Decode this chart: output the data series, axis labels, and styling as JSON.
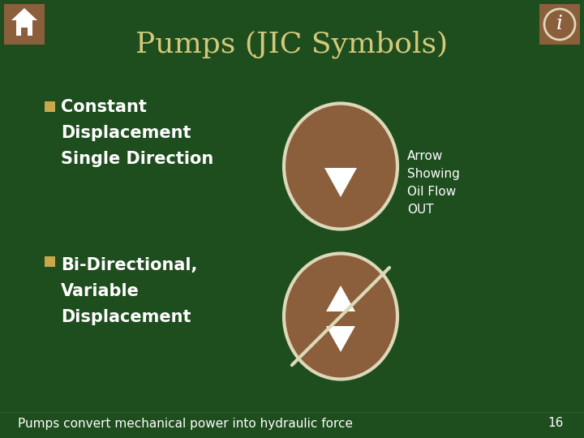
{
  "bg_color": "#1e4d1e",
  "title": "Pumps (JIC Symbols)",
  "title_color": "#d4c87a",
  "title_fontsize": 26,
  "bullet_color": "#c8a84b",
  "text_color": "#ffffff",
  "circle_fill": "#8b5e3c",
  "circle_edge": "#ddd8b8",
  "bullet1_lines": [
    "Constant",
    "Displacement",
    "Single Direction"
  ],
  "bullet2_lines": [
    "Bi-Directional,",
    "Variable",
    "Displacement"
  ],
  "annotation_lines": [
    "Arrow",
    "Showing",
    "Oil Flow",
    "OUT"
  ],
  "footer_text": "Pumps convert mechanical power into hydraulic force",
  "footer_number": "16",
  "footer_color": "#ffffff",
  "icon_fill": "#8b5e3c"
}
